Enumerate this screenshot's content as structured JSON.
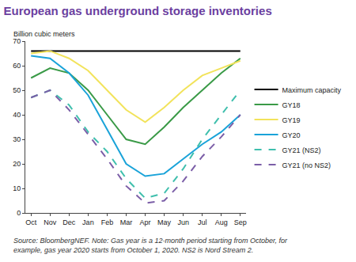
{
  "chart_data": {
    "type": "line",
    "title": "European gas underground storage inventories",
    "y_label": "Billion cubic meters",
    "note": "Source: BloombergNEF. Note: Gas year is a 12-month period starting from October, for example, gas year 2020 starts from October 1, 2020. NS2 is Nord Stream 2.",
    "categories": [
      "Oct",
      "Nov",
      "Dec",
      "Jan",
      "Feb",
      "Mar",
      "Apr",
      "May",
      "Jun",
      "Jul",
      "Aug",
      "Sep"
    ],
    "series": [
      {
        "name": "Maximum capacity",
        "color": "#000000",
        "line_style": "solid",
        "values": [
          66,
          66,
          66,
          66,
          66,
          66,
          66,
          66,
          66,
          66,
          66,
          66
        ]
      },
      {
        "name": "GY18",
        "color": "#3a9a47",
        "line_style": "solid",
        "values": [
          55,
          59,
          57,
          50,
          40,
          30,
          28,
          35,
          43,
          50,
          57,
          63
        ]
      },
      {
        "name": "GY19",
        "color": "#f2e35b",
        "line_style": "solid",
        "values": [
          65,
          66,
          63,
          58,
          50,
          42,
          37,
          43,
          50,
          56,
          59,
          62
        ]
      },
      {
        "name": "GY20",
        "color": "#1aa3d9",
        "line_style": "solid",
        "values": [
          64,
          63,
          57,
          48,
          34,
          20,
          15,
          16,
          22,
          28,
          33,
          40
        ]
      },
      {
        "name": "GY21 (NS2)",
        "color": "#3fbfad",
        "line_style": "dash",
        "values": [
          47,
          50,
          44,
          33,
          25,
          14,
          6,
          8,
          18,
          30,
          40,
          50
        ]
      },
      {
        "name": "GY21 (no NS2)",
        "color": "#7b5ea7",
        "line_style": "dash",
        "values": [
          47,
          50,
          42,
          32,
          22,
          11,
          4,
          5,
          13,
          23,
          31,
          40
        ]
      }
    ],
    "ylim": [
      0,
      70
    ],
    "yticks": [
      0,
      10,
      20,
      30,
      40,
      50,
      60,
      70
    ],
    "grid": false,
    "legend": "right"
  }
}
